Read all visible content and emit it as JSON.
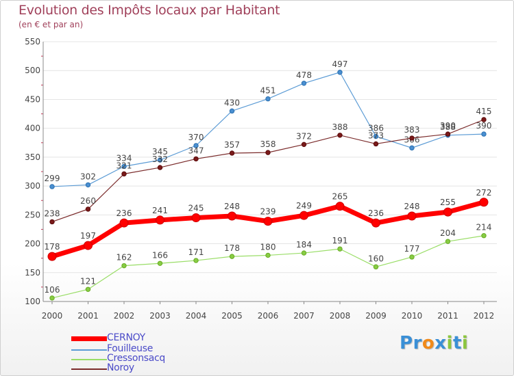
{
  "title": "Evolution des Impôts locaux par Habitant",
  "subtitle": "(en € et par an)",
  "logo": {
    "text": "Proxiti",
    "letters": [
      {
        "ch": "P",
        "color": "#3a8fd6"
      },
      {
        "ch": "r",
        "color": "#3a8fd6"
      },
      {
        "ch": "o",
        "color": "#f08a1a"
      },
      {
        "ch": "x",
        "color": "#3a8fd6"
      },
      {
        "ch": "i",
        "color": "#8cc63f"
      },
      {
        "ch": "t",
        "color": "#3a8fd6"
      },
      {
        "ch": "i",
        "color": "#8cc63f"
      }
    ]
  },
  "legend": [
    {
      "name": "CERNOY",
      "color": "#ff0000"
    },
    {
      "name": "Fouilleuse",
      "color": "#5b9bd5"
    },
    {
      "name": "Cressonsacq",
      "color": "#99dd66"
    },
    {
      "name": "Noroy",
      "color": "#7a2a2a"
    }
  ],
  "chart_data": {
    "type": "line",
    "title": "Evolution des Impôts locaux par Habitant",
    "subtitle": "(en € et par an)",
    "xlabel": "",
    "ylabel": "",
    "x": [
      "2000",
      "2001",
      "2002",
      "2003",
      "2004",
      "2005",
      "2006",
      "2007",
      "2008",
      "2009",
      "2010",
      "2011",
      "2012"
    ],
    "ylim": [
      100,
      550
    ],
    "yticks": [
      "100",
      "150",
      "200",
      "250",
      "300",
      "350",
      "400",
      "450",
      "500",
      "550"
    ],
    "grid": "horizontal",
    "legend_position": "bottom-left",
    "series": [
      {
        "name": "Fouilleuse",
        "color": "#5b9bd5",
        "values": [
          299,
          302,
          334,
          345,
          370,
          430,
          451,
          478,
          497,
          386,
          366,
          388,
          390
        ]
      },
      {
        "name": "Noroy",
        "color": "#7a2a2a",
        "values": [
          238,
          260,
          321,
          332,
          347,
          357,
          358,
          372,
          388,
          373,
          383,
          390,
          415
        ]
      },
      {
        "name": "CERNOY",
        "color": "#ff0000",
        "values": [
          178,
          197,
          236,
          241,
          245,
          248,
          239,
          249,
          265,
          236,
          248,
          255,
          272
        ]
      },
      {
        "name": "Cressonsacq",
        "color": "#99dd66",
        "values": [
          106,
          121,
          162,
          166,
          171,
          178,
          180,
          184,
          191,
          160,
          177,
          204,
          214
        ]
      }
    ]
  }
}
